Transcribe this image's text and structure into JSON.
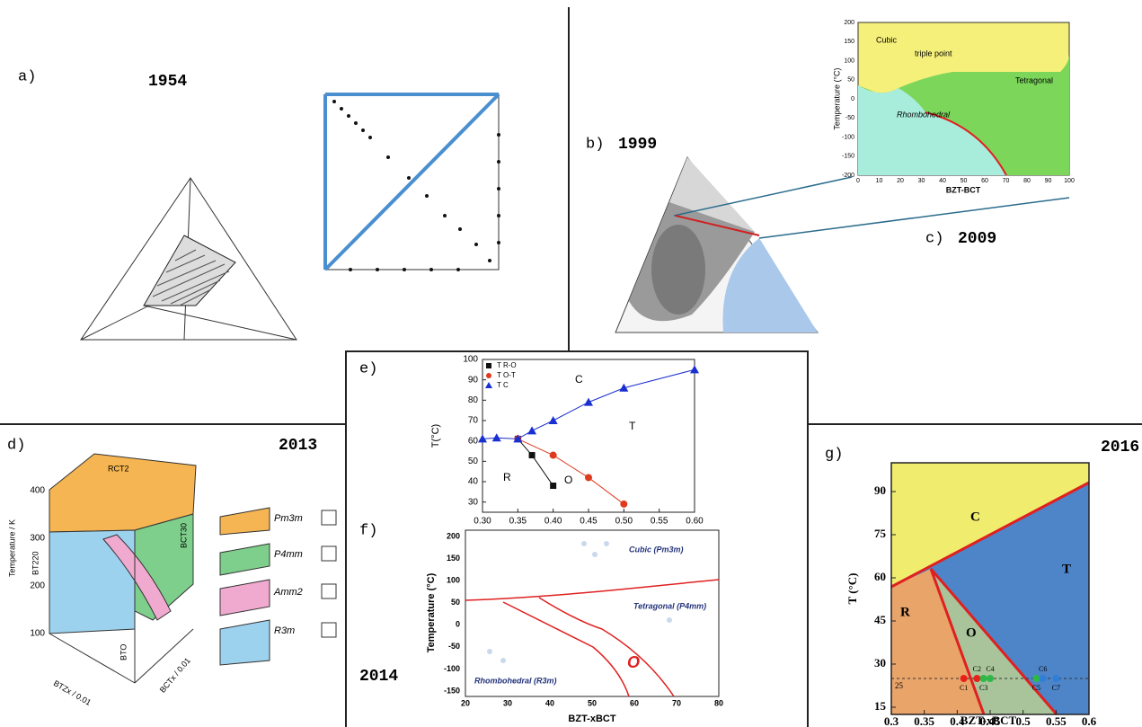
{
  "panel_a": {
    "label": "a)",
    "year": "1954"
  },
  "panel_b": {
    "label": "b)",
    "year": "1999"
  },
  "panel_c": {
    "label": "c)",
    "year": "2009",
    "y_label": "Temperature (°C)",
    "x_label": "BZT-BCT",
    "yticks": [
      200,
      150,
      100,
      50,
      0,
      -50,
      -100,
      -150,
      -200
    ],
    "xticks": [
      0,
      10,
      20,
      30,
      40,
      50,
      60,
      70,
      80,
      90,
      100
    ],
    "regions": [
      "Cubic",
      "triple point",
      "Tetragonal",
      "Rhombohedral"
    ]
  },
  "panel_d": {
    "label": "d)",
    "year": "2013",
    "y_label": "Temperature / K",
    "yticks": [
      100,
      200,
      300,
      400
    ],
    "regions": [
      "RCT2",
      "BT220",
      "BCT30",
      "BTO"
    ],
    "x_label": "BTZx / 0.01",
    "z_label": "BCTx / 0.01",
    "phases": [
      "Pm3m",
      "P4mm",
      "Amm2",
      "R3m"
    ]
  },
  "panel_e": {
    "label": "e)",
    "y_label": "T(°C)",
    "xlim": [
      0.3,
      0.6
    ],
    "ylim": [
      25,
      100
    ],
    "xticks": [
      {
        "value": 0.3,
        "label": "0.30"
      },
      0.35,
      {
        "value": 0.4,
        "label": "0.40"
      },
      0.45,
      {
        "value": 0.5,
        "label": "0.50"
      },
      0.55,
      {
        "value": 0.6,
        "label": "0.60"
      }
    ],
    "yticks": [
      30,
      40,
      50,
      60,
      70,
      80,
      90,
      100
    ],
    "series": [
      {
        "name": "T R-O",
        "color": "#111111",
        "x": [
          0.35,
          0.37,
          0.4
        ],
        "values": [
          61,
          53,
          38
        ]
      },
      {
        "name": "T O-T",
        "color": "#e03a1e",
        "x": [
          0.35,
          0.4,
          0.45,
          0.5
        ],
        "values": [
          61,
          53,
          42,
          29
        ]
      },
      {
        "name": "T C",
        "color": "#1a2fd0",
        "x": [
          0.3,
          0.32,
          0.35,
          0.37,
          0.4,
          0.45,
          0.5,
          0.6
        ],
        "values": [
          61,
          61.5,
          61,
          65,
          70,
          79,
          86,
          95
        ]
      }
    ],
    "regions": [
      "C",
      "T",
      "R",
      "O"
    ]
  },
  "panel_f": {
    "label": "f)",
    "year": "2014",
    "y_label": "Temperature (°C)",
    "x_label": "BZT-xBCT",
    "yticks": [
      200,
      150,
      100,
      50,
      0,
      -50,
      -100,
      -150
    ],
    "xticks": [
      20,
      30,
      40,
      50,
      60,
      70,
      80
    ],
    "annotations": [
      "Cubic (Pm3m)",
      "Tetragonal (P4mm)",
      "Rhombohedral (R3m)",
      "O"
    ]
  },
  "panel_g": {
    "label": "g)",
    "year": "2016",
    "y_label": "T (°C)",
    "x_label": "BZT-xBCT",
    "xlim": [
      0.3,
      0.6
    ],
    "ylim": [
      12.5,
      100
    ],
    "xticks": [
      0.3,
      0.35,
      0.4,
      0.45,
      0.5,
      0.55,
      0.6
    ],
    "yticks": [
      15,
      30,
      45,
      60,
      75,
      90
    ],
    "regions": [
      "C",
      "T",
      "R",
      "O"
    ],
    "reference": 25,
    "points": [
      {
        "label": "C1",
        "x": 0.41,
        "color": "#e8201a"
      },
      {
        "label": "C2",
        "x": 0.43,
        "color": "#e8201a"
      },
      {
        "label": "C3",
        "x": 0.44,
        "color": "#2fb84a"
      },
      {
        "label": "C4",
        "x": 0.45,
        "color": "#2fb84a"
      },
      {
        "label": "C5",
        "x": 0.52,
        "color": "#2fb84a"
      },
      {
        "label": "C6",
        "x": 0.53,
        "color": "#2f7fd8"
      },
      {
        "label": "C7",
        "x": 0.55,
        "color": "#2f7fd8"
      }
    ]
  }
}
